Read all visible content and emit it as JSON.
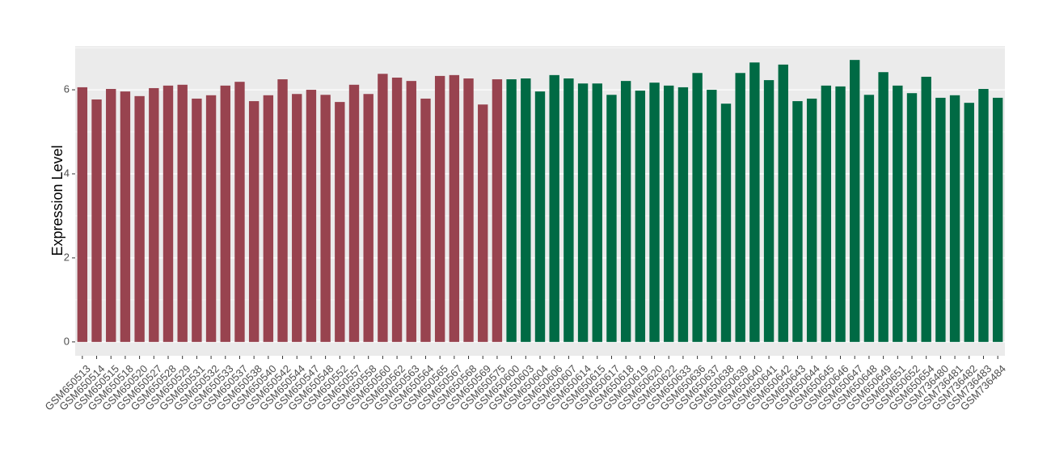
{
  "chart_data": {
    "type": "bar",
    "y_label": "Expression Level",
    "categories": [
      "GSM650513",
      "GSM650514",
      "GSM650515",
      "GSM650518",
      "GSM650520",
      "GSM650527",
      "GSM650528",
      "GSM650529",
      "GSM650531",
      "GSM650532",
      "GSM650533",
      "GSM650537",
      "GSM650538",
      "GSM650540",
      "GSM650542",
      "GSM650544",
      "GSM650547",
      "GSM650548",
      "GSM650552",
      "GSM650557",
      "GSM650558",
      "GSM650560",
      "GSM650562",
      "GSM650563",
      "GSM650564",
      "GSM650565",
      "GSM650567",
      "GSM650568",
      "GSM650569",
      "GSM650575",
      "GSM650600",
      "GSM650603",
      "GSM650604",
      "GSM650606",
      "GSM650607",
      "GSM650614",
      "GSM650615",
      "GSM650617",
      "GSM650618",
      "GSM650619",
      "GSM650620",
      "GSM650622",
      "GSM650633",
      "GSM650636",
      "GSM650637",
      "GSM650638",
      "GSM650639",
      "GSM650640",
      "GSM650641",
      "GSM650642",
      "GSM650643",
      "GSM650644",
      "GSM650645",
      "GSM650646",
      "GSM650647",
      "GSM650648",
      "GSM650649",
      "GSM650651",
      "GSM650652",
      "GSM650654",
      "GSM736480",
      "GSM736481",
      "GSM736482",
      "GSM736483",
      "GSM736484"
    ],
    "values": [
      6.06,
      5.77,
      6.02,
      5.96,
      5.85,
      6.04,
      6.1,
      6.12,
      5.79,
      5.87,
      6.1,
      6.19,
      5.73,
      5.87,
      6.25,
      5.9,
      6.0,
      5.88,
      5.71,
      6.12,
      5.9,
      6.38,
      6.29,
      6.21,
      5.79,
      6.33,
      6.35,
      6.27,
      5.65,
      6.25,
      6.25,
      6.27,
      5.96,
      6.35,
      6.27,
      6.15,
      6.15,
      5.88,
      6.21,
      5.98,
      6.17,
      6.1,
      6.06,
      6.4,
      6.0,
      5.67,
      6.4,
      6.65,
      6.23,
      6.6,
      5.73,
      5.79,
      6.1,
      6.08,
      6.71,
      5.88,
      6.42,
      6.1,
      5.92,
      6.31,
      5.81,
      5.87,
      5.69,
      6.02,
      5.81
    ],
    "colors": [
      "#98434f",
      "#98434f",
      "#98434f",
      "#98434f",
      "#98434f",
      "#98434f",
      "#98434f",
      "#98434f",
      "#98434f",
      "#98434f",
      "#98434f",
      "#98434f",
      "#98434f",
      "#98434f",
      "#98434f",
      "#98434f",
      "#98434f",
      "#98434f",
      "#98434f",
      "#98434f",
      "#98434f",
      "#98434f",
      "#98434f",
      "#98434f",
      "#98434f",
      "#98434f",
      "#98434f",
      "#98434f",
      "#98434f",
      "#98434f",
      "#006a44",
      "#006a44",
      "#006a44",
      "#006a44",
      "#006a44",
      "#006a44",
      "#006a44",
      "#006a44",
      "#006a44",
      "#006a44",
      "#006a44",
      "#006a44",
      "#006a44",
      "#006a44",
      "#006a44",
      "#006a44",
      "#006a44",
      "#006a44",
      "#006a44",
      "#006a44",
      "#006a44",
      "#006a44",
      "#006a44",
      "#006a44",
      "#006a44",
      "#006a44",
      "#006a44",
      "#006a44",
      "#006a44",
      "#006a44",
      "#006a44",
      "#006a44",
      "#006a44",
      "#006a44",
      "#006a44"
    ],
    "ylim": [
      -0.33,
      7.04
    ],
    "yticks": [
      0,
      2,
      4,
      6
    ],
    "grid": true
  }
}
